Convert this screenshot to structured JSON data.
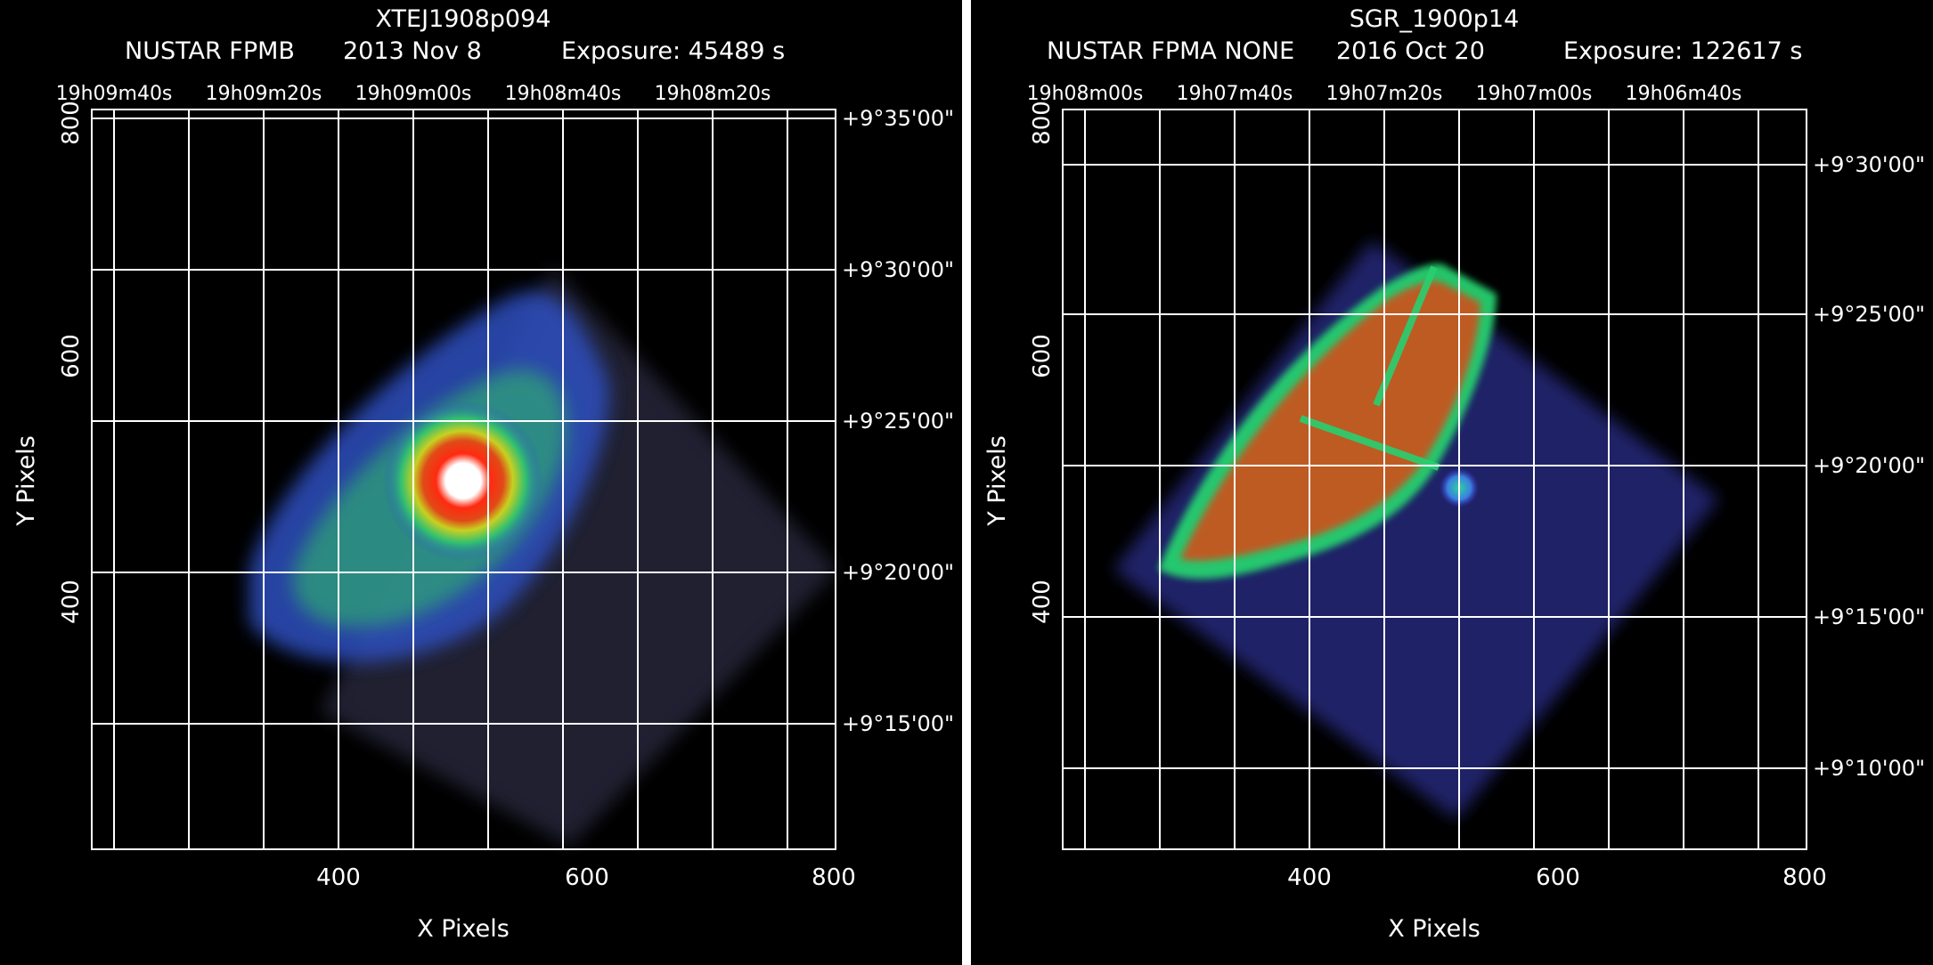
{
  "panels": [
    {
      "object": "XTEJ1908p094",
      "instrument": "NUSTAR FPMB",
      "date": "2013 Nov  8",
      "exposure": "Exposure: 45489 s",
      "xlabel": "X Pixels",
      "ylabel": "Y Pixels",
      "x_ticks": [
        "400",
        "600",
        "800"
      ],
      "y_ticks": [
        "400",
        "600",
        "800"
      ],
      "ra_ticks": [
        "19h09m40s",
        "19h09m20s",
        "19h09m00s",
        "19h08m40s",
        "19h08m20s"
      ],
      "dec_ticks": [
        "+9°35'00\"",
        "+9°30'00\"",
        "+9°25'00\"",
        "+9°20'00\"",
        "+9°15'00\""
      ]
    },
    {
      "object": "SGR_1900p14",
      "instrument": "NUSTAR FPMA NONE",
      "date": "2016 Oct 20",
      "exposure": "Exposure: 122617 s",
      "xlabel": "X Pixels",
      "ylabel": "Y Pixels",
      "x_ticks": [
        "400",
        "600",
        "800"
      ],
      "y_ticks": [
        "400",
        "600",
        "800"
      ],
      "ra_ticks": [
        "19h08m00s",
        "19h07m40s",
        "19h07m20s",
        "19h07m00s",
        "19h06m40s"
      ],
      "dec_ticks": [
        "+9°30'00\"",
        "+9°25'00\"",
        "+9°20'00\"",
        "+9°15'00\"",
        "+9°10'00\""
      ]
    }
  ],
  "colors": {
    "background": "#000000",
    "grid": "#ffffff",
    "divider": "#ffffff",
    "colormap": [
      "#2a2a6a",
      "#3b3bd8",
      "#3aa0e0",
      "#20d070",
      "#e8e020",
      "#e83010",
      "#ffffff"
    ]
  }
}
